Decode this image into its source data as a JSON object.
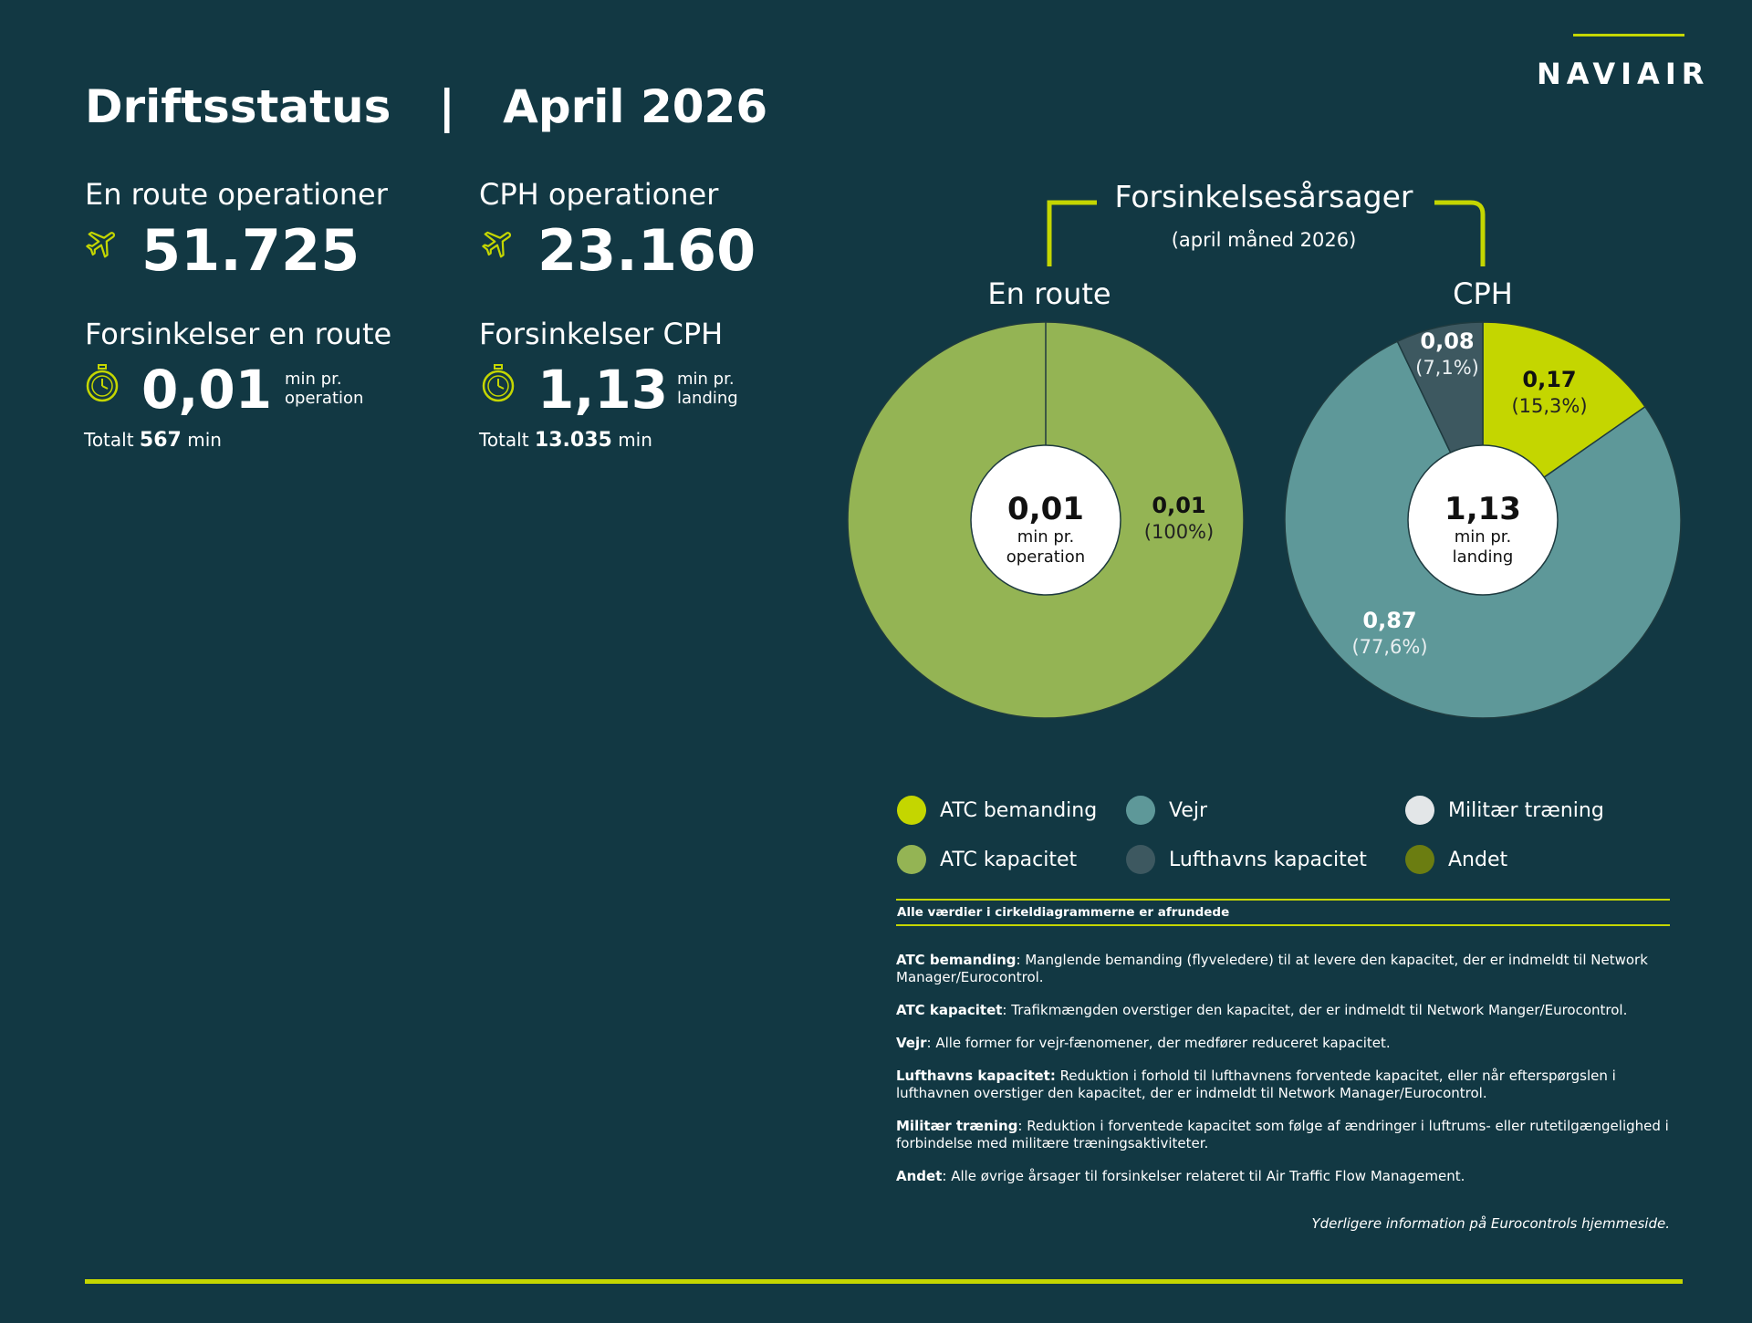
{
  "header": {
    "title": "Driftsstatus",
    "separator": "|",
    "month": "April 2026",
    "logo": "NAVIAIR"
  },
  "kpis": {
    "enroute_ops": {
      "label": "En route operationer",
      "value": "51.725",
      "icon": "airplane-icon"
    },
    "cph_ops": {
      "label": "CPH operationer",
      "value": "23.160",
      "icon": "airplane-icon"
    },
    "enroute_delay": {
      "label": "Forsinkelser en route",
      "value": "0,01",
      "unit_line1": "min pr.",
      "unit_line2": "operation",
      "total_prefix": "Totalt",
      "total_value": "567",
      "total_unit": "min",
      "icon": "stopwatch-icon"
    },
    "cph_delay": {
      "label": "Forsinkelser CPH",
      "value": "1,13",
      "unit_line1": "min pr.",
      "unit_line2": "landing",
      "total_prefix": "Totalt",
      "total_value": "13.035",
      "total_unit": "min",
      "icon": "stopwatch-icon"
    }
  },
  "charts_header": {
    "title": "Forsinkelsesårsager",
    "subtitle": "(april måned 2026)"
  },
  "chart_data": [
    {
      "type": "pie",
      "title": "En route",
      "center_value": "0,01",
      "center_line1": "min pr.",
      "center_line2": "operation",
      "slices": [
        {
          "category": "ATC kapacitet",
          "value": 0.01,
          "percent": 100,
          "label_value": "0,01",
          "label_percent": "(100%)",
          "color": "#94b454"
        }
      ]
    },
    {
      "type": "pie",
      "title": "CPH",
      "center_value": "1,13",
      "center_line1": "min pr.",
      "center_line2": "landing",
      "slices": [
        {
          "category": "ATC bemanding",
          "value": 0.17,
          "percent": 15.3,
          "label_value": "0,17",
          "label_percent": "(15,3%)",
          "color": "#c4d600"
        },
        {
          "category": "Vejr",
          "value": 0.87,
          "percent": 77.6,
          "label_value": "0,87",
          "label_percent": "(77,6%)",
          "color": "#5e9899"
        },
        {
          "category": "Lufthavns kapacitet",
          "value": 0.08,
          "percent": 7.1,
          "label_value": "0,08",
          "label_percent": "(7,1%)",
          "color": "#3d5860"
        }
      ]
    }
  ],
  "legend": [
    {
      "label": "ATC bemanding",
      "color": "#c4d600"
    },
    {
      "label": "Vejr",
      "color": "#5e9899"
    },
    {
      "label": "Militær træning",
      "color": "#e3e6e8"
    },
    {
      "label": "ATC kapacitet",
      "color": "#94b454"
    },
    {
      "label": "Lufthavns kapacitet",
      "color": "#3d5860"
    },
    {
      "label": "Andet",
      "color": "#6b7d11"
    }
  ],
  "note": "Alle værdier i cirkeldiagrammerne er afrundede",
  "definitions": [
    {
      "term": "ATC bemanding",
      "text": ": Manglende bemanding (flyveledere) til at levere den kapacitet, der er indmeldt til Network Manager/Eurocontrol."
    },
    {
      "term": "ATC kapacitet",
      "text": ": Trafikmængden overstiger den kapacitet, der er indmeldt til Network Manger/Eurocontrol."
    },
    {
      "term": "Vejr",
      "text": ": Alle former for vejr-fænomener, der medfører reduceret kapacitet."
    },
    {
      "term": "Lufthavns kapacitet:",
      "text": " Reduktion i forhold til lufthavnens forventede kapacitet, eller når efterspørgslen i lufthavnen overstiger den kapacitet, der er indmeldt til Network Manager/Eurocontrol."
    },
    {
      "term": "Militær træning",
      "text": ": Reduktion i forventede kapacitet som følge af ændringer i luftrums- eller rutetilgængelighed i forbindelse med militære træningsaktiviteter."
    },
    {
      "term": "Andet",
      "text": ": Alle øvrige årsager til forsinkelser relateret til Air Traffic Flow Management."
    }
  ],
  "more_info": "Yderligere information på Eurocontrols hjemmeside.",
  "colors": {
    "background": "#123843",
    "accent": "#c4d600"
  }
}
